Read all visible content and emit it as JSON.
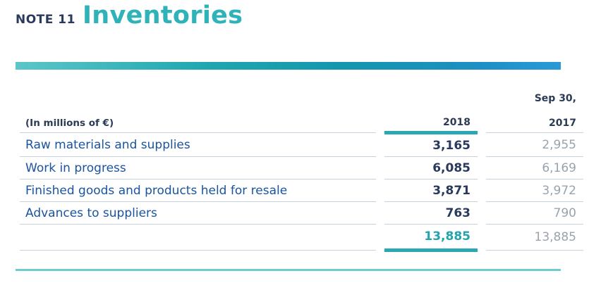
{
  "note": {
    "label": "NOTE 11",
    "title": "Inventories"
  },
  "table": {
    "unit_label": "(In millions of €)",
    "date_header_current": "",
    "date_header_previous": "Sep 30,",
    "year_current": "2018",
    "year_previous": "2017",
    "rows": [
      {
        "label": "Raw materials and supplies",
        "current": "3,165",
        "previous": "2,955"
      },
      {
        "label": "Work in progress",
        "current": "6,085",
        "previous": "6,169"
      },
      {
        "label": "Finished goods and products held for resale",
        "current": "3,871",
        "previous": "3,972"
      },
      {
        "label": "Advances to suppliers",
        "current": "763",
        "previous": "790"
      }
    ],
    "total": {
      "label": "",
      "current": "13,885",
      "previous": "13,885"
    }
  },
  "colors": {
    "accent_teal": "#2aa9b4",
    "title_teal": "#2fb3b8",
    "label_blue": "#1a54a0",
    "value_dark": "#2a3a5c",
    "value_gray": "#9aa3ad"
  }
}
